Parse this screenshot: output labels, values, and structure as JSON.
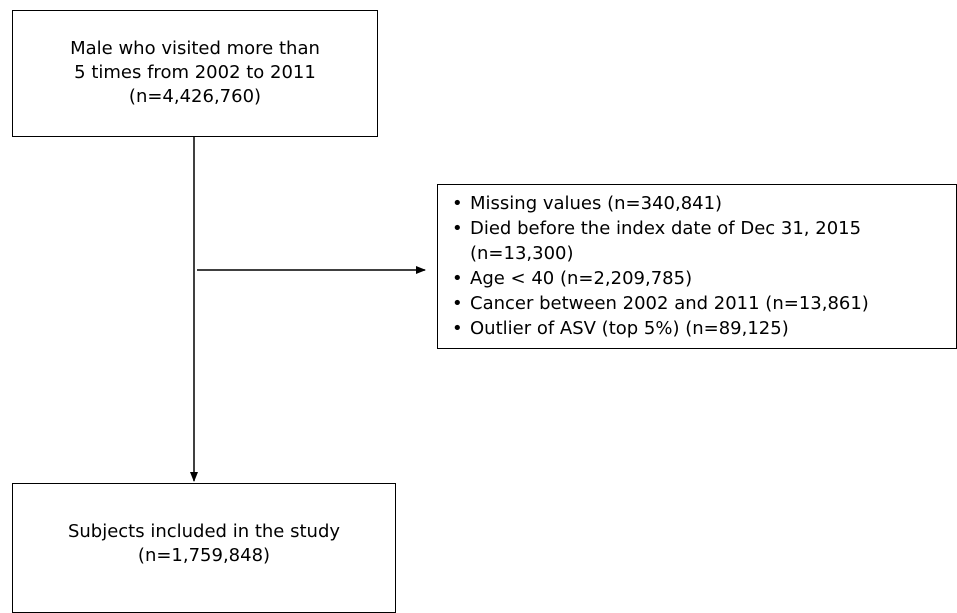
{
  "top_box": {
    "lines": [
      "Male who visited more than",
      "5 times from 2002 to 2011",
      "(n=4,426,760)"
    ]
  },
  "exclusion_box": {
    "items": [
      {
        "text": "Missing values (n=340,841)"
      },
      {
        "text": "Died before the index date of Dec 31, 2015",
        "continuation": "(n=13,300)"
      },
      {
        "text": "Age < 40 (n=2,209,785)"
      },
      {
        "text": "Cancer between 2002 and 2011 (n=13,861)"
      },
      {
        "text": "Outlier of ASV (top 5%) (n=89,125)"
      }
    ]
  },
  "bottom_box": {
    "lines": [
      "Subjects included in the study",
      "(n=1,759,848)"
    ]
  }
}
